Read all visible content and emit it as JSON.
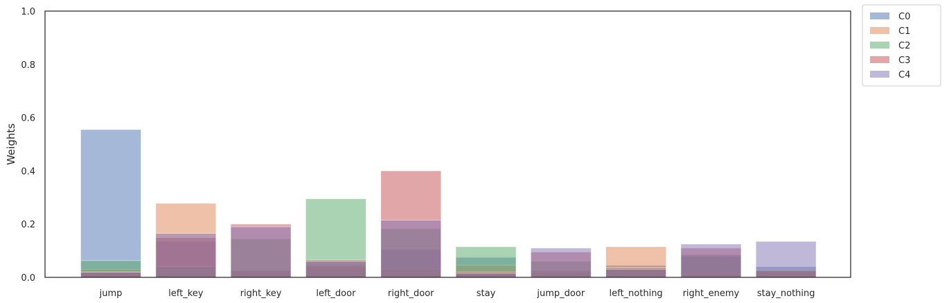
{
  "chart_data": {
    "type": "bar",
    "stacked": false,
    "overlapping": true,
    "categories": [
      "jump",
      "left_key",
      "right_key",
      "left_door",
      "right_door",
      "stay",
      "jump_door",
      "left_nothing",
      "right_enemy",
      "stay_nothing"
    ],
    "series": [
      {
        "name": "C0",
        "color": "#4c72b0",
        "values": [
          0.555,
          0.135,
          0.025,
          0.04,
          0.105,
          0.075,
          0.025,
          0.045,
          0.085,
          0.04
        ]
      },
      {
        "name": "C1",
        "color": "#dd8452",
        "values": [
          0.03,
          0.278,
          0.025,
          0.045,
          0.03,
          0.045,
          0.02,
          0.115,
          0.015,
          0.025
        ]
      },
      {
        "name": "C2",
        "color": "#55a868",
        "values": [
          0.063,
          0.04,
          0.145,
          0.295,
          0.183,
          0.115,
          0.06,
          0.035,
          0.08,
          0.03
        ]
      },
      {
        "name": "C3",
        "color": "#c44e52",
        "values": [
          0.02,
          0.15,
          0.2,
          0.065,
          0.4,
          0.02,
          0.095,
          0.035,
          0.11,
          0.025
        ]
      },
      {
        "name": "C4",
        "color": "#8172b3",
        "values": [
          0.02,
          0.165,
          0.19,
          0.06,
          0.215,
          0.015,
          0.11,
          0.03,
          0.125,
          0.135
        ]
      }
    ],
    "bar_alpha": 0.5,
    "title": "",
    "xlabel": "",
    "ylabel": "Weights",
    "ylim": [
      0,
      1.0
    ],
    "yticks": [
      "0.0",
      "0.2",
      "0.4",
      "0.6",
      "0.8",
      "1.0"
    ],
    "ytick_values": [
      0.0,
      0.2,
      0.4,
      0.6,
      0.8,
      1.0
    ],
    "grid": false,
    "legend": "outside-top-right"
  }
}
